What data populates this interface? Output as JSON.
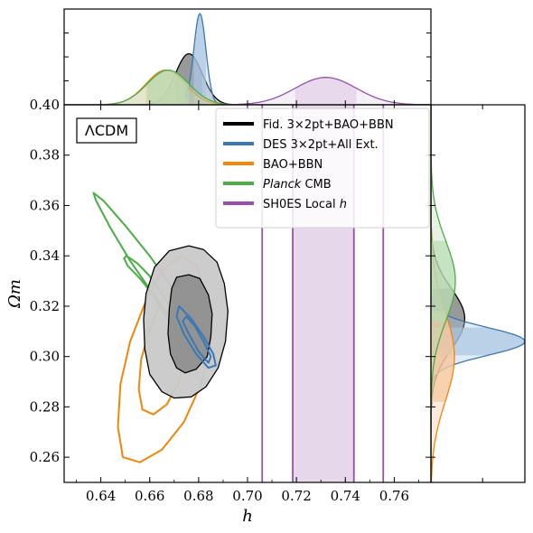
{
  "model_label": "ΛCDM",
  "chart_data": [
    {
      "type": "contour",
      "panel": "main",
      "xlabel": "h",
      "ylabel": "Ωm",
      "xlim": [
        0.625,
        0.775
      ],
      "ylim": [
        0.25,
        0.4
      ],
      "xticks": [
        "0.64",
        "0.66",
        "0.68",
        "0.70",
        "0.72",
        "0.74",
        "0.76"
      ],
      "yticks": [
        "0.26",
        "0.28",
        "0.30",
        "0.32",
        "0.34",
        "0.36",
        "0.38",
        "0.40"
      ],
      "legend_position": "top-right",
      "series": [
        {
          "name": "Fid. 3×2pt+BAO+BBN",
          "color": "#000000",
          "fill": "#808080",
          "center": [
            0.6765,
            0.3145
          ],
          "contour_68": [
            [
              0.671,
              0.3315
            ],
            [
              0.676,
              0.3325
            ],
            [
              0.6805,
              0.331
            ],
            [
              0.684,
              0.3245
            ],
            [
              0.6855,
              0.317
            ],
            [
              0.685,
              0.308
            ],
            [
              0.6835,
              0.3
            ],
            [
              0.679,
              0.295
            ],
            [
              0.6745,
              0.2935
            ],
            [
              0.671,
              0.2955
            ],
            [
              0.6685,
              0.301
            ],
            [
              0.6675,
              0.309
            ],
            [
              0.668,
              0.319
            ],
            [
              0.669,
              0.327
            ]
          ],
          "contour_95": [
            [
              0.662,
              0.3355
            ],
            [
              0.668,
              0.342
            ],
            [
              0.676,
              0.344
            ],
            [
              0.682,
              0.3425
            ],
            [
              0.6875,
              0.3375
            ],
            [
              0.6905,
              0.329
            ],
            [
              0.692,
              0.318
            ],
            [
              0.691,
              0.306
            ],
            [
              0.688,
              0.2955
            ],
            [
              0.683,
              0.288
            ],
            [
              0.677,
              0.284
            ],
            [
              0.67,
              0.2835
            ],
            [
              0.665,
              0.286
            ],
            [
              0.66,
              0.293
            ],
            [
              0.658,
              0.303
            ],
            [
              0.6575,
              0.315
            ],
            [
              0.6585,
              0.325
            ]
          ]
        },
        {
          "name": "DES 3×2pt+All Ext.",
          "color": "#3a78b6",
          "fill": "#a9c6e2",
          "center": [
            0.6805,
            0.3065
          ],
          "contour_68": [
            [
              0.675,
              0.316
            ],
            [
              0.6785,
              0.312
            ],
            [
              0.682,
              0.306
            ],
            [
              0.685,
              0.3
            ],
            [
              0.684,
              0.2975
            ],
            [
              0.68,
              0.302
            ],
            [
              0.676,
              0.309
            ],
            [
              0.6735,
              0.314
            ]
          ],
          "contour_95": [
            [
              0.672,
              0.32
            ],
            [
              0.677,
              0.315
            ],
            [
              0.682,
              0.308
            ],
            [
              0.686,
              0.301
            ],
            [
              0.687,
              0.2965
            ],
            [
              0.684,
              0.2955
            ],
            [
              0.679,
              0.301
            ],
            [
              0.674,
              0.309
            ],
            [
              0.671,
              0.316
            ]
          ]
        },
        {
          "name": "BAO+BBN",
          "color": "#f0870a",
          "fill": "#f6c79a",
          "center": [
            0.667,
            0.2935
          ],
          "contour_68": [
            [
              0.672,
              0.329
            ],
            [
              0.6755,
              0.325
            ],
            [
              0.677,
              0.315
            ],
            [
              0.6755,
              0.302
            ],
            [
              0.672,
              0.29
            ],
            [
              0.667,
              0.281
            ],
            [
              0.6615,
              0.277
            ],
            [
              0.657,
              0.279
            ],
            [
              0.6555,
              0.287
            ],
            [
              0.6565,
              0.299
            ],
            [
              0.66,
              0.311
            ],
            [
              0.665,
              0.322
            ]
          ],
          "contour_95": [
            [
              0.6725,
              0.34
            ],
            [
              0.679,
              0.336
            ],
            [
              0.684,
              0.323
            ],
            [
              0.685,
              0.306
            ],
            [
              0.681,
              0.289
            ],
            [
              0.674,
              0.274
            ],
            [
              0.665,
              0.263
            ],
            [
              0.656,
              0.258
            ],
            [
              0.649,
              0.26
            ],
            [
              0.647,
              0.272
            ],
            [
              0.648,
              0.289
            ],
            [
              0.652,
              0.306
            ],
            [
              0.658,
              0.321
            ],
            [
              0.665,
              0.334
            ]
          ]
        },
        {
          "name": "Planck CMB",
          "color": "#4aad45",
          "fill": "#b8dcb3",
          "center": [
            0.672,
            0.318
          ],
          "contour_68": [
            [
              0.6505,
              0.34
            ],
            [
              0.655,
              0.337
            ],
            [
              0.66,
              0.332
            ],
            [
              0.665,
              0.325
            ],
            [
              0.67,
              0.317
            ],
            [
              0.674,
              0.31
            ],
            [
              0.677,
              0.305
            ],
            [
              0.676,
              0.303
            ],
            [
              0.671,
              0.309
            ],
            [
              0.666,
              0.317
            ],
            [
              0.661,
              0.325
            ],
            [
              0.656,
              0.331
            ],
            [
              0.651,
              0.336
            ],
            [
              0.6495,
              0.339
            ]
          ],
          "contour_95": [
            [
              0.637,
              0.365
            ],
            [
              0.641,
              0.362
            ],
            [
              0.65,
              0.352
            ],
            [
              0.66,
              0.34
            ],
            [
              0.668,
              0.329
            ],
            [
              0.675,
              0.319
            ],
            [
              0.681,
              0.309
            ],
            [
              0.688,
              0.2975
            ],
            [
              0.687,
              0.2955
            ],
            [
              0.68,
              0.301
            ],
            [
              0.671,
              0.312
            ],
            [
              0.662,
              0.324
            ],
            [
              0.652,
              0.338
            ],
            [
              0.644,
              0.351
            ],
            [
              0.638,
              0.362
            ]
          ]
        },
        {
          "name": "SH0ES Local h",
          "color": "#9a4fae",
          "fill": "#e3d0e8",
          "h_mean": 0.732,
          "band_68": [
            0.7185,
            0.7435
          ],
          "band_95": [
            0.706,
            0.7555
          ]
        }
      ]
    },
    {
      "type": "area",
      "panel": "top",
      "variable": "h",
      "ylim": [
        0,
        1.05
      ],
      "series": [
        {
          "name": "Fid. 3×2pt+BAO+BBN",
          "color": "#000000",
          "fill": "#808080",
          "mean": 0.676,
          "sd": 0.0055,
          "peak": 0.56
        },
        {
          "name": "DES 3×2pt+All Ext.",
          "color": "#3a78b6",
          "fill": "#a9c6e2",
          "mean": 0.6805,
          "sd": 0.0025,
          "peak": 1.0
        },
        {
          "name": "BAO+BBN",
          "color": "#f0870a",
          "fill": "#f6c79a",
          "mean": 0.6665,
          "sd": 0.008,
          "peak": 0.38
        },
        {
          "name": "Planck CMB",
          "color": "#4aad45",
          "fill": "#b8dcb3",
          "mean": 0.6675,
          "sd": 0.0085,
          "peak": 0.38
        },
        {
          "name": "SH0ES Local h",
          "color": "#9a4fae",
          "fill": "#e3d0e8",
          "mean": 0.732,
          "sd": 0.0125,
          "peak": 0.3
        }
      ]
    },
    {
      "type": "area",
      "panel": "right",
      "variable": "Ωm",
      "series": [
        {
          "name": "Fid. 3×2pt+BAO+BBN",
          "color": "#000000",
          "fill": "#808080",
          "mean": 0.315,
          "sd": 0.012,
          "peak": 0.36
        },
        {
          "name": "DES 3×2pt+All Ext.",
          "color": "#3a78b6",
          "fill": "#a9c6e2",
          "mean": 0.306,
          "sd": 0.0055,
          "peak": 1.0
        },
        {
          "name": "BAO+BBN",
          "color": "#f0870a",
          "fill": "#f6c79a",
          "mean": 0.3,
          "sd": 0.018,
          "peak": 0.25
        },
        {
          "name": "Planck CMB",
          "color": "#4aad45",
          "fill": "#b8dcb3",
          "mean": 0.33,
          "sd": 0.016,
          "peak": 0.26
        }
      ]
    }
  ]
}
